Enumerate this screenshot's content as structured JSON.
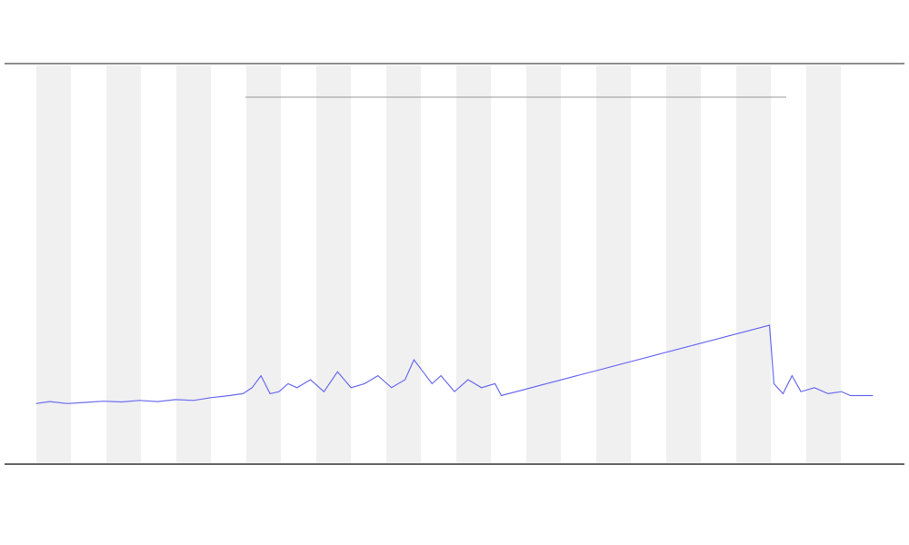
{
  "chart_data": {
    "type": "line",
    "xlim": [
      0,
      100
    ],
    "ylim": [
      0,
      100
    ],
    "series": [
      {
        "color": "#6b6bf0",
        "x": [
          3.5,
          5,
          7,
          9,
          11,
          13,
          15,
          17,
          19,
          21,
          23,
          25,
          26.5,
          27.5,
          28.5,
          29.5,
          30.5,
          31.5,
          32.5,
          34,
          35.5,
          37,
          38.5,
          40,
          41.5,
          43,
          44.5,
          45.5,
          46.5,
          47.5,
          48.5,
          50,
          51.5,
          53,
          54.5,
          55.2,
          85,
          85.5,
          86.5,
          87.5,
          88.5,
          90,
          91.5,
          93,
          94,
          95,
          96.5
        ],
        "values": [
          15,
          15.5,
          15,
          15.3,
          15.6,
          15.4,
          15.8,
          15.5,
          16,
          15.8,
          16.5,
          17,
          17.5,
          19,
          22,
          17.5,
          18,
          20,
          19,
          21,
          18,
          23,
          19,
          20,
          22,
          19,
          21,
          26,
          23,
          20,
          22,
          18,
          21,
          19,
          20,
          17,
          34.7,
          20,
          17.5,
          22,
          18,
          19,
          17.5,
          18,
          17,
          17,
          17
        ]
      }
    ]
  }
}
